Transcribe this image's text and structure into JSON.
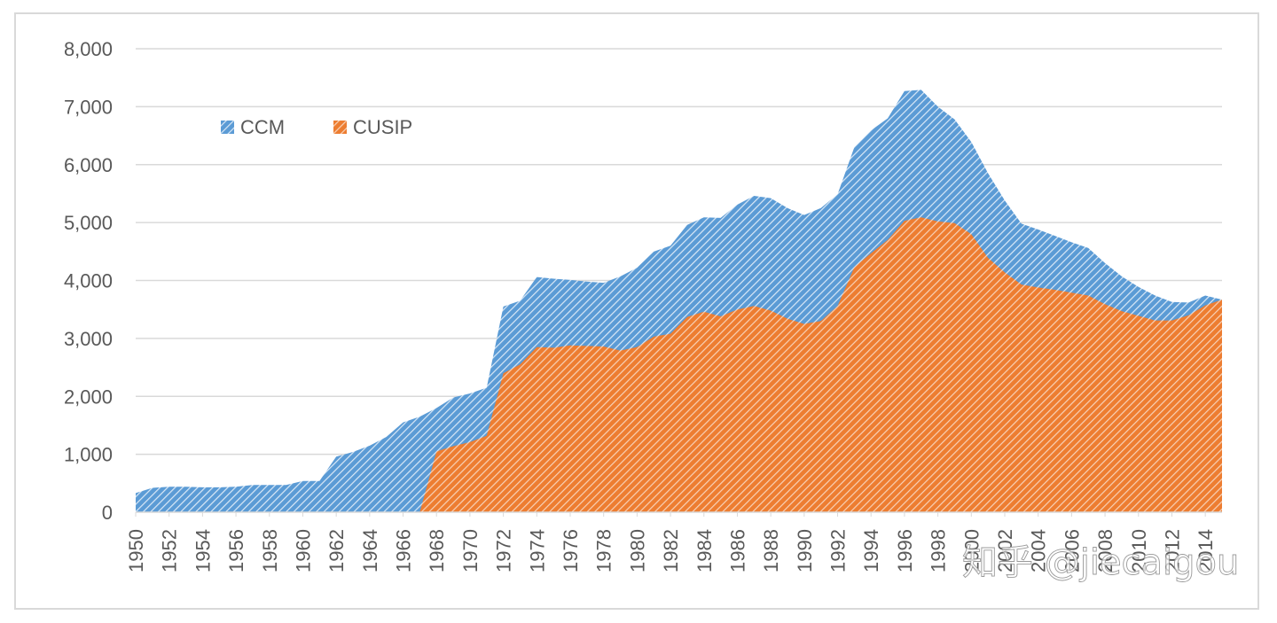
{
  "watermark": "知乎 @jiecaigou",
  "colors": {
    "ccm": "#5b9bd5",
    "cusip": "#ed7d31",
    "grid": "#d9d9d9",
    "text": "#595959"
  },
  "chart_data": {
    "type": "area",
    "title": "",
    "xlabel": "",
    "ylabel": "",
    "ylim": [
      0,
      8000
    ],
    "yticks": [
      "0",
      "1,000",
      "2,000",
      "3,000",
      "4,000",
      "5,000",
      "6,000",
      "7,000",
      "8,000"
    ],
    "xticks": [
      "1950",
      "1952",
      "1954",
      "1956",
      "1958",
      "1960",
      "1962",
      "1964",
      "1966",
      "1968",
      "1970",
      "1972",
      "1974",
      "1976",
      "1978",
      "1980",
      "1982",
      "1984",
      "1986",
      "1988",
      "1990",
      "1992",
      "1994",
      "1996",
      "1998",
      "2000",
      "2002",
      "2004",
      "2006",
      "2008",
      "2010",
      "2012",
      "2014"
    ],
    "x": [
      1950,
      1951,
      1952,
      1953,
      1954,
      1955,
      1956,
      1957,
      1958,
      1959,
      1960,
      1961,
      1962,
      1963,
      1964,
      1965,
      1966,
      1967,
      1968,
      1969,
      1970,
      1971,
      1972,
      1973,
      1974,
      1975,
      1976,
      1977,
      1978,
      1979,
      1980,
      1981,
      1982,
      1983,
      1984,
      1985,
      1986,
      1987,
      1988,
      1989,
      1990,
      1991,
      1992,
      1993,
      1994,
      1995,
      1996,
      1997,
      1998,
      1999,
      2000,
      2001,
      2002,
      2003,
      2004,
      2005,
      2006,
      2007,
      2008,
      2009,
      2010,
      2011,
      2012,
      2013,
      2014,
      2015
    ],
    "legend_position": "top-left",
    "series": [
      {
        "name": "CCM",
        "color": "#5b9bd5",
        "values": [
          330,
          420,
          440,
          440,
          430,
          430,
          440,
          470,
          470,
          470,
          540,
          540,
          960,
          1040,
          1150,
          1300,
          1550,
          1650,
          1800,
          1980,
          2050,
          2150,
          3550,
          3650,
          4060,
          4030,
          4010,
          3980,
          3960,
          4070,
          4220,
          4500,
          4600,
          4960,
          5090,
          5080,
          5310,
          5460,
          5420,
          5250,
          5130,
          5250,
          5490,
          6300,
          6590,
          6800,
          7270,
          7290,
          7000,
          6780,
          6390,
          5850,
          5380,
          4980,
          4880,
          4770,
          4660,
          4560,
          4300,
          4070,
          3890,
          3740,
          3630,
          3620,
          3740,
          3670
        ]
      },
      {
        "name": "CUSIP",
        "color": "#ed7d31",
        "values": [
          0,
          0,
          0,
          0,
          0,
          0,
          0,
          0,
          0,
          0,
          0,
          0,
          0,
          0,
          0,
          0,
          0,
          0,
          1050,
          1140,
          1210,
          1320,
          2400,
          2550,
          2850,
          2840,
          2880,
          2870,
          2860,
          2790,
          2850,
          3030,
          3080,
          3370,
          3460,
          3380,
          3500,
          3560,
          3480,
          3340,
          3250,
          3300,
          3560,
          4230,
          4470,
          4700,
          5030,
          5090,
          5020,
          4990,
          4800,
          4390,
          4140,
          3930,
          3880,
          3840,
          3790,
          3740,
          3590,
          3470,
          3390,
          3310,
          3310,
          3400,
          3570,
          3670
        ]
      }
    ]
  }
}
